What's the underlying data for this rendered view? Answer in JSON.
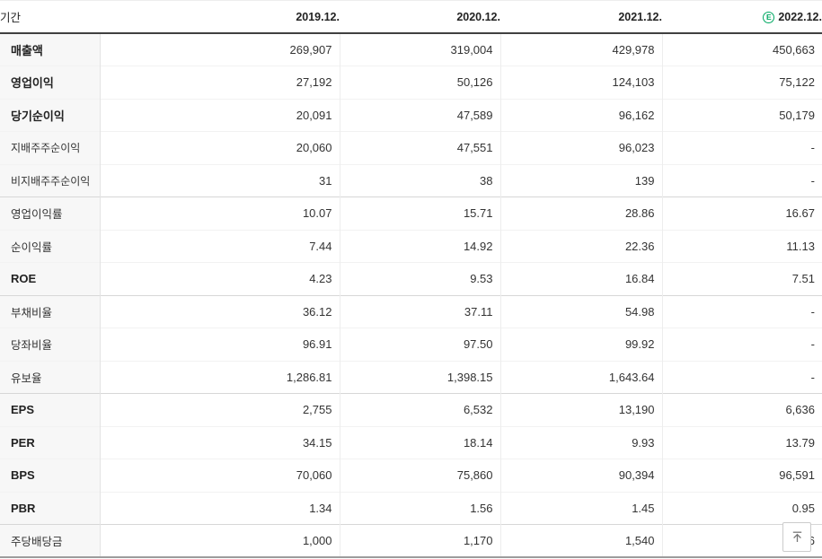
{
  "header": {
    "period_label": "기간",
    "columns": [
      "2019.12.",
      "2020.12.",
      "2021.12.",
      "2022.12."
    ],
    "estimate_column_index": 3,
    "estimate_icon_letter": "E"
  },
  "colors": {
    "estimate_green": "#00a862",
    "header_rule": "#404040",
    "group_separator": "#d7d7d7"
  },
  "table": {
    "rows": [
      {
        "label": "매출액",
        "style": "main",
        "values": [
          "269,907",
          "319,004",
          "429,978",
          "450,663"
        ]
      },
      {
        "label": "영업이익",
        "style": "main",
        "values": [
          "27,192",
          "50,126",
          "124,103",
          "75,122"
        ]
      },
      {
        "label": "당기순이익",
        "style": "main",
        "values": [
          "20,091",
          "47,589",
          "96,162",
          "50,179"
        ]
      },
      {
        "label": "지배주주순이익",
        "style": "sub",
        "values": [
          "20,060",
          "47,551",
          "96,023",
          "-"
        ]
      },
      {
        "label": "비지배주주순이익",
        "style": "sub",
        "values": [
          "31",
          "38",
          "139",
          "-"
        ]
      },
      {
        "label": "영업이익률",
        "style": "normal",
        "group_start": true,
        "values": [
          "10.07",
          "15.71",
          "28.86",
          "16.67"
        ]
      },
      {
        "label": "순이익률",
        "style": "normal",
        "values": [
          "7.44",
          "14.92",
          "22.36",
          "11.13"
        ]
      },
      {
        "label": "ROE",
        "style": "main",
        "values": [
          "4.23",
          "9.53",
          "16.84",
          "7.51"
        ]
      },
      {
        "label": "부채비율",
        "style": "normal",
        "group_start": true,
        "values": [
          "36.12",
          "37.11",
          "54.98",
          "-"
        ]
      },
      {
        "label": "당좌비율",
        "style": "normal",
        "values": [
          "96.91",
          "97.50",
          "99.92",
          "-"
        ]
      },
      {
        "label": "유보율",
        "style": "normal",
        "values": [
          "1,286.81",
          "1,398.15",
          "1,643.64",
          "-"
        ]
      },
      {
        "label": "EPS",
        "style": "main",
        "group_start": true,
        "values": [
          "2,755",
          "6,532",
          "13,190",
          "6,636"
        ]
      },
      {
        "label": "PER",
        "style": "main",
        "values": [
          "34.15",
          "18.14",
          "9.93",
          "13.79"
        ]
      },
      {
        "label": "BPS",
        "style": "main",
        "values": [
          "70,060",
          "75,860",
          "90,394",
          "96,591"
        ]
      },
      {
        "label": "PBR",
        "style": "main",
        "values": [
          "1.34",
          "1.56",
          "1.45",
          "0.95"
        ]
      },
      {
        "label": "주당배당금",
        "style": "normal",
        "group_start": true,
        "values": [
          "1,000",
          "1,170",
          "1,540",
          "6"
        ]
      }
    ]
  },
  "scroll_top_button": {
    "icon": "arrow-up-to-bar"
  }
}
